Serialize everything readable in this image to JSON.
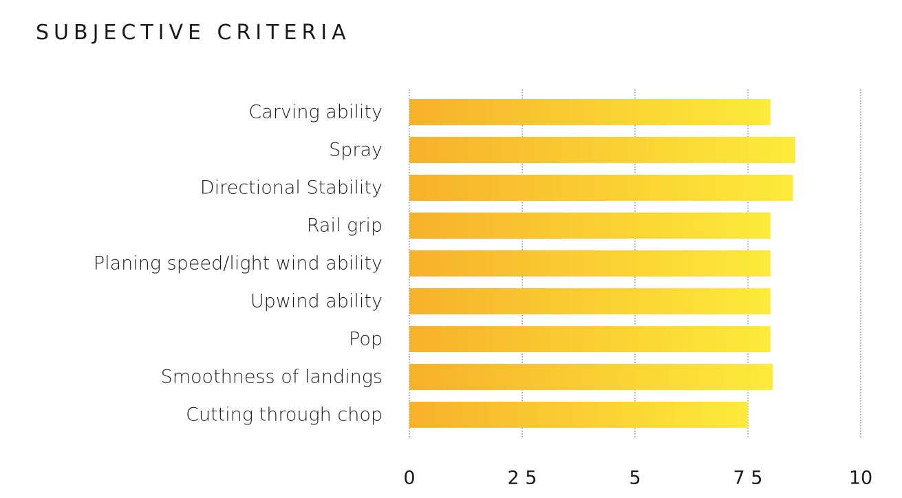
{
  "chart_data": {
    "type": "bar",
    "orientation": "horizontal",
    "title": "SUBJECTIVE CRITERIA",
    "xlabel": "",
    "ylabel": "",
    "categories": [
      "Carving ability",
      "Spray",
      "Directional Stability",
      "Rail grip",
      "Planing speed/light wind ability",
      "Upwind ability",
      "Pop",
      "Smoothness of landings",
      "Cutting through chop"
    ],
    "values": [
      8.0,
      8.55,
      8.5,
      8.0,
      8.0,
      8.0,
      8.0,
      8.05,
      7.5
    ],
    "xlim": [
      0,
      10
    ],
    "ticks": [
      0,
      2.5,
      5,
      7.5,
      10
    ],
    "tick_labels": [
      "0",
      "2 5",
      "5",
      "7 5",
      "10"
    ],
    "grid": true,
    "legend": "none",
    "colors": {
      "bar_start": "#F7B12B",
      "bar_end": "#FDEB3A",
      "text": "#1A1A1A",
      "grid": "#555555"
    }
  }
}
